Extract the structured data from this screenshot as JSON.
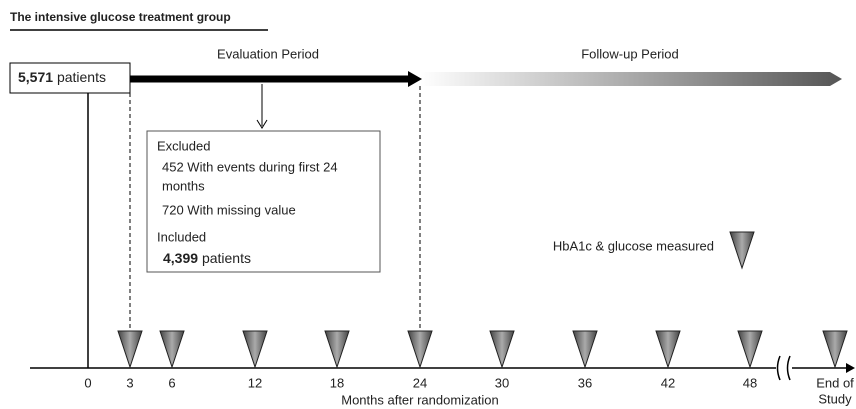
{
  "header": {
    "title": "The intensive glucose treatment group"
  },
  "start_box": {
    "count": "5,571",
    "unit": "patients"
  },
  "periods": {
    "evaluation": "Evaluation Period",
    "follow_up": "Follow-up Period"
  },
  "excluded_box": {
    "excluded_heading": "Excluded",
    "excluded_items": [
      [
        "452 With events during first 24",
        "months"
      ],
      "720 With missing value"
    ],
    "included_heading": "Included",
    "included_count": "4,399",
    "included_unit": "patients"
  },
  "legend": {
    "label": "HbA1c & glucose measured"
  },
  "timeline": {
    "ticks": [
      0,
      3,
      6,
      12,
      18,
      24,
      30,
      36,
      42,
      48
    ],
    "end_label": [
      "End of",
      "Study"
    ],
    "axis_title": "Months after randomization"
  }
}
